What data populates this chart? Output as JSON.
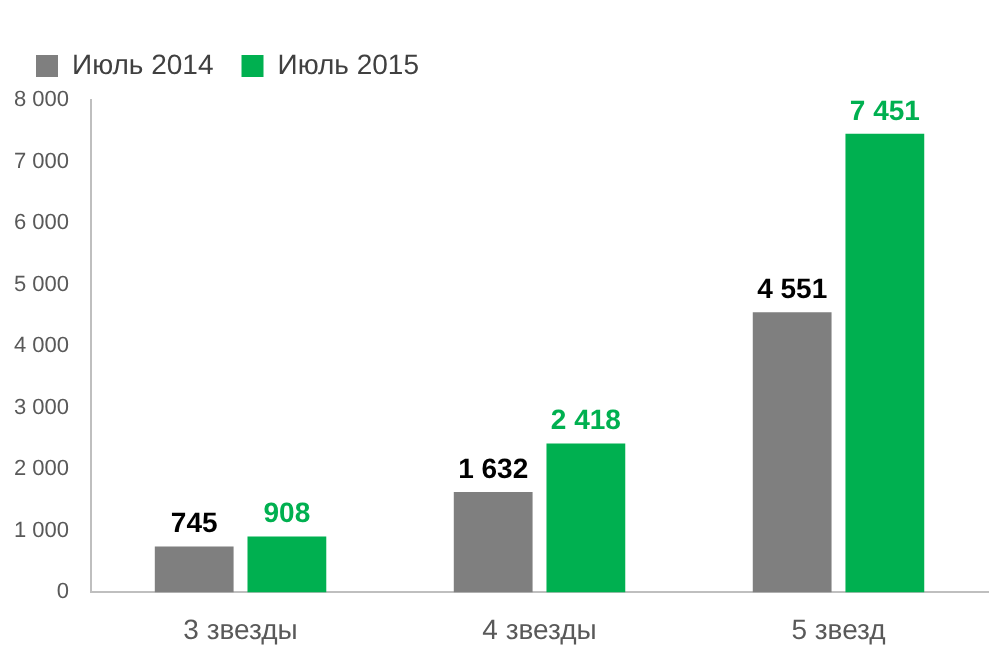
{
  "chart_data": {
    "type": "bar",
    "categories": [
      "3 звезды",
      "4 звезды",
      "5 звезд"
    ],
    "series": [
      {
        "name": "Июль 2014",
        "color": "#7f7f7f",
        "values": [
          745,
          1632,
          4551
        ],
        "value_labels": [
          "745",
          "1 632",
          "4 551"
        ]
      },
      {
        "name": "Июль 2015",
        "color": "#00b050",
        "values": [
          908,
          2418,
          7451
        ],
        "value_labels": [
          "908",
          "2 418",
          "7 451"
        ]
      }
    ],
    "ylim": [
      0,
      8000
    ],
    "yticks": [
      0,
      {
        "value": 1000,
        "label": "1 000"
      },
      {
        "value": 2000,
        "label": "2 000"
      },
      {
        "value": 3000,
        "label": "3 000"
      },
      {
        "value": 4000,
        "label": "4 000"
      },
      {
        "value": 5000,
        "label": "5 000"
      },
      {
        "value": 6000,
        "label": "6 000"
      },
      {
        "value": 7000,
        "label": "7 000"
      },
      {
        "value": 8000,
        "label": "8 000"
      }
    ],
    "grid": false,
    "legend": "top left"
  }
}
